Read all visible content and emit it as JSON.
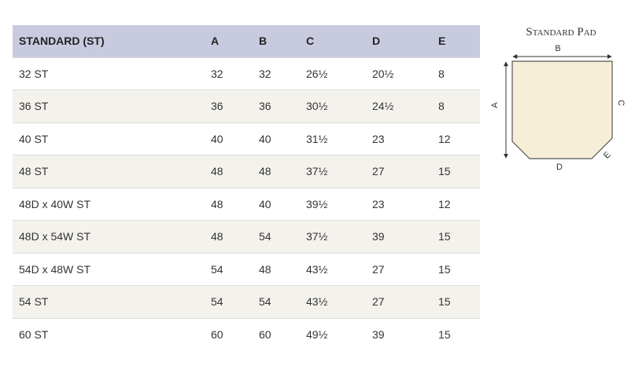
{
  "table": {
    "header": [
      "STANDARD (ST)",
      "A",
      "B",
      "C",
      "D",
      "E"
    ],
    "rows": [
      [
        "32 ST",
        "32",
        "32",
        "26½",
        "20½",
        "8"
      ],
      [
        "36 ST",
        "36",
        "36",
        "30½",
        "24½",
        "8"
      ],
      [
        "40 ST",
        "40",
        "40",
        "31½",
        "23",
        "12"
      ],
      [
        "48 ST",
        "48",
        "48",
        "37½",
        "27",
        "15"
      ],
      [
        "48D x 40W ST",
        "48",
        "40",
        "39½",
        "23",
        "12"
      ],
      [
        "48D x 54W ST",
        "48",
        "54",
        "37½",
        "39",
        "15"
      ],
      [
        "54D x 48W ST",
        "54",
        "48",
        "43½",
        "27",
        "15"
      ],
      [
        "54 ST",
        "54",
        "54",
        "43½",
        "27",
        "15"
      ],
      [
        "60 ST",
        "60",
        "60",
        "49½",
        "39",
        "15"
      ]
    ]
  },
  "diagram": {
    "title": "Standard Pad",
    "labels": {
      "a": "A",
      "b": "B",
      "c": "C",
      "d": "D",
      "e": "E"
    }
  }
}
